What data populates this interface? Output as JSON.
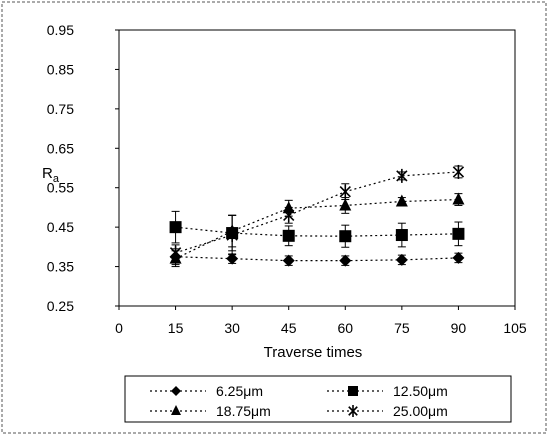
{
  "chart_data": {
    "type": "line",
    "xlabel": "Traverse times",
    "ylabel": "R",
    "ylabel_sub": "a",
    "xlim": [
      0,
      105
    ],
    "ylim": [
      0.25,
      0.95
    ],
    "x_ticks": [
      "0",
      "15",
      "30",
      "45",
      "60",
      "75",
      "90",
      "105"
    ],
    "y_ticks": [
      "0.25",
      "0.35",
      "0.45",
      "0.55",
      "0.65",
      "0.75",
      "0.85",
      "0.95"
    ],
    "x": [
      15,
      30,
      45,
      60,
      75,
      90
    ],
    "grid": false,
    "legend_position": "bottom",
    "series": [
      {
        "name": "6.25μm",
        "marker": "diamond",
        "color": "#000000",
        "values": [
          0.375,
          0.37,
          0.365,
          0.365,
          0.367,
          0.372
        ],
        "errors": [
          0.02,
          0.012,
          0.012,
          0.012,
          0.012,
          0.012
        ]
      },
      {
        "name": "12.50μm",
        "marker": "square",
        "color": "#000000",
        "values": [
          0.45,
          0.435,
          0.428,
          0.427,
          0.43,
          0.433
        ],
        "errors": [
          0.04,
          0.045,
          0.025,
          0.028,
          0.03,
          0.03
        ]
      },
      {
        "name": "18.75μm",
        "marker": "triangle",
        "color": "#000000",
        "values": [
          0.37,
          0.44,
          0.498,
          0.505,
          0.515,
          0.52
        ],
        "errors": [
          0.02,
          0.04,
          0.02,
          0.02,
          0.01,
          0.015
        ]
      },
      {
        "name": "25.00μm",
        "marker": "asterisk",
        "color": "#000000",
        "values": [
          0.385,
          0.43,
          0.48,
          0.54,
          0.58,
          0.59
        ],
        "errors": [
          0.02,
          0.05,
          0.02,
          0.02,
          0.01,
          0.015
        ]
      }
    ]
  }
}
